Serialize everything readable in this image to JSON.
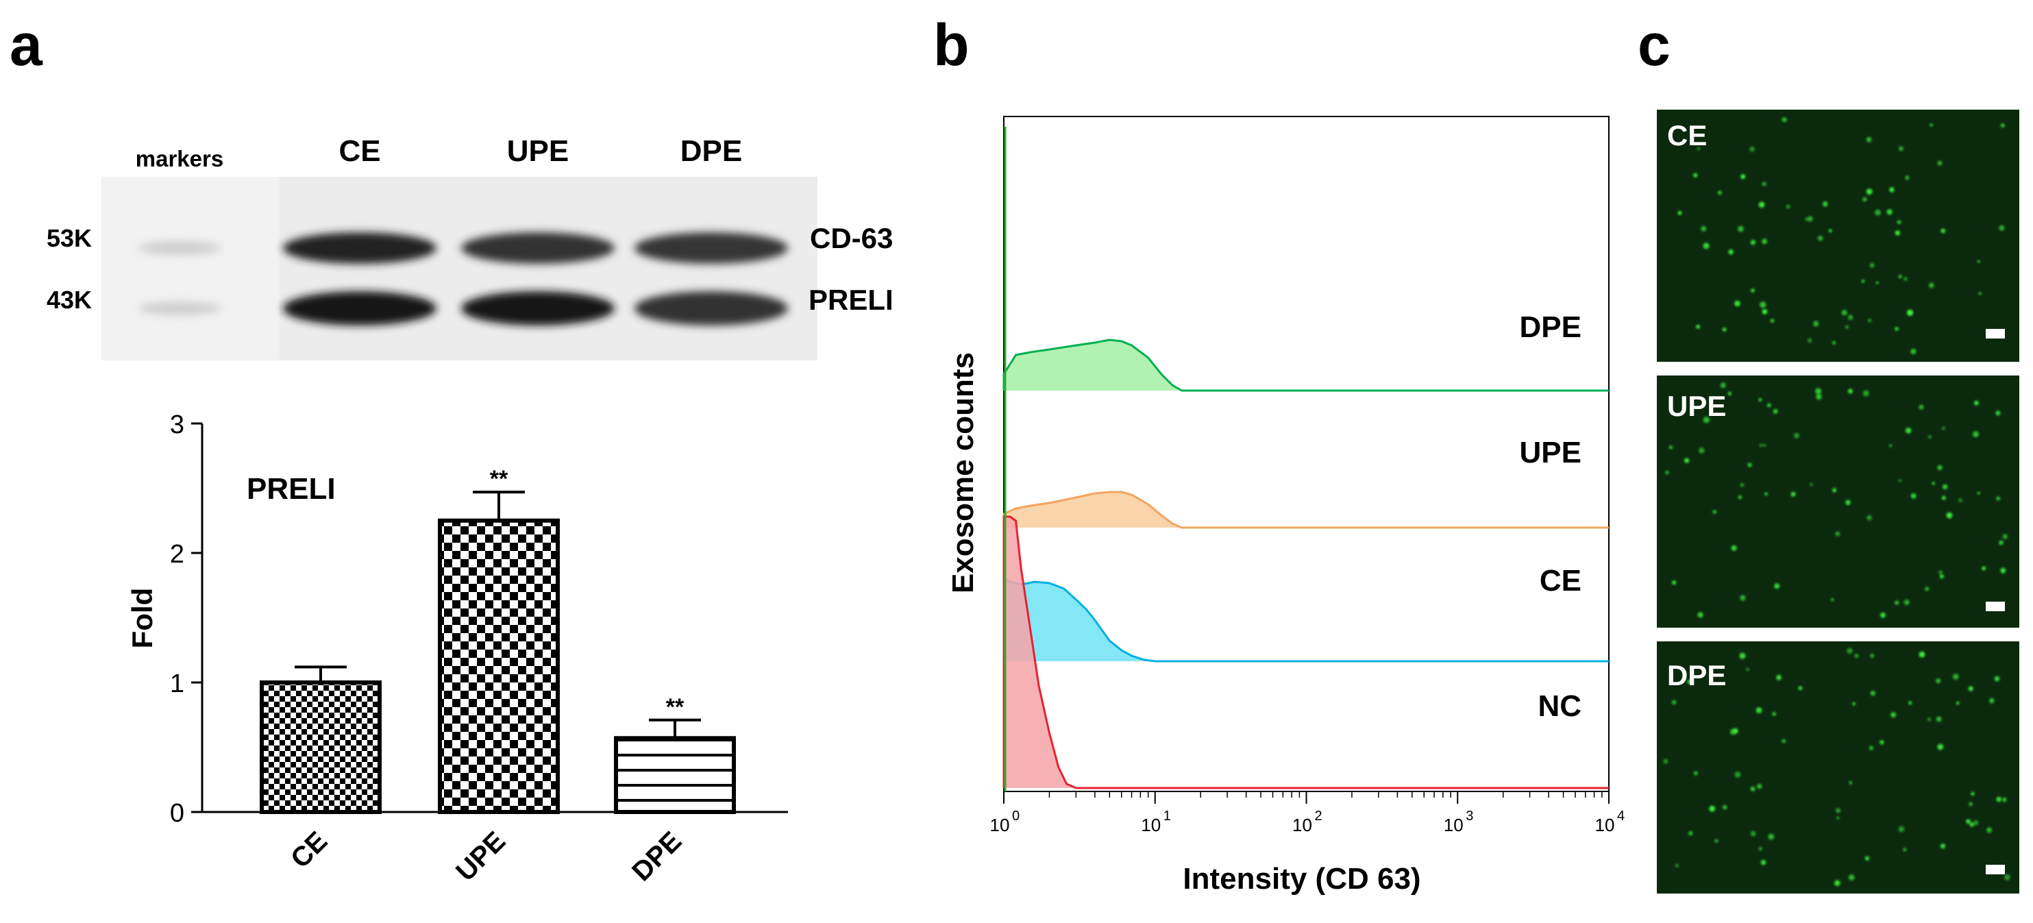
{
  "panel_labels": {
    "a": "a",
    "b": "b",
    "c": "c"
  },
  "blot": {
    "lane_headers": [
      "markers",
      "CE",
      "UPE",
      "DPE"
    ],
    "mw_labels": [
      "53K",
      "43K"
    ],
    "band_labels": [
      "CD-63",
      "PRELI"
    ],
    "band_intensity": {
      "CD-63": [
        0.88,
        0.8,
        0.78
      ],
      "PRELI": [
        0.95,
        0.95,
        0.8
      ]
    }
  },
  "chart_data": [
    {
      "type": "bar",
      "title": "PRELI",
      "categories": [
        "CE",
        "UPE",
        "DPE"
      ],
      "values": [
        1.0,
        2.25,
        0.57
      ],
      "errors": [
        0.12,
        0.22,
        0.14
      ],
      "significance": [
        "",
        "**",
        "**"
      ],
      "patterns": [
        "fine-checker",
        "coarse-checker",
        "horizontal-lines"
      ],
      "ylabel": "Fold",
      "xlabel": "",
      "ylim": [
        0,
        3
      ],
      "yticks": [
        0,
        1,
        2,
        3
      ]
    },
    {
      "type": "area",
      "xlabel": "Intensity (CD 63)",
      "ylabel": "Exosome counts",
      "xscale": "log",
      "xlim": [
        1,
        10000
      ],
      "xticks": [
        {
          "value": 1,
          "label": "10",
          "exp": "0"
        },
        {
          "value": 10,
          "label": "10",
          "exp": "1"
        },
        {
          "value": 100,
          "label": "10",
          "exp": "2"
        },
        {
          "value": 1000,
          "label": "10",
          "exp": "3"
        },
        {
          "value": 10000,
          "label": "10",
          "exp": "4"
        }
      ],
      "series": [
        {
          "name": "DPE",
          "color": "#00b050",
          "fill": "#a3eea3",
          "x": [
            1.0,
            1.2,
            1.5,
            2.0,
            3.0,
            4.0,
            5.0,
            6.0,
            7.0,
            9.0,
            11.0,
            13.0,
            15.0
          ],
          "y": [
            0.12,
            0.26,
            0.28,
            0.3,
            0.33,
            0.35,
            0.37,
            0.36,
            0.33,
            0.24,
            0.12,
            0.04,
            0.0
          ]
        },
        {
          "name": "UPE",
          "color": "#f4a460",
          "fill": "#f9cc9c",
          "x": [
            1.0,
            1.2,
            1.5,
            2.0,
            3.0,
            4.0,
            5.0,
            6.0,
            7.0,
            9.0,
            11.0,
            13.0,
            15.0
          ],
          "y": [
            0.1,
            0.14,
            0.16,
            0.18,
            0.22,
            0.25,
            0.26,
            0.26,
            0.24,
            0.17,
            0.09,
            0.03,
            0.0
          ]
        },
        {
          "name": "CE",
          "color": "#00b0e0",
          "fill": "#6fe3f5",
          "x": [
            1.0,
            1.1,
            1.3,
            1.6,
            2.0,
            2.5,
            3.0,
            3.5,
            4.0,
            4.5,
            5.0,
            6.0,
            7.0,
            8.5,
            10.0
          ],
          "y": [
            0.6,
            0.58,
            0.56,
            0.58,
            0.57,
            0.53,
            0.45,
            0.38,
            0.3,
            0.22,
            0.15,
            0.08,
            0.04,
            0.01,
            0.0
          ]
        },
        {
          "name": "NC",
          "color": "#e8212f",
          "fill": "#f5a3a8",
          "x": [
            1.0,
            1.1,
            1.2,
            1.3,
            1.5,
            1.7,
            2.0,
            2.3,
            2.6,
            3.0
          ],
          "y": [
            1.98,
            1.98,
            1.95,
            1.6,
            1.15,
            0.75,
            0.4,
            0.15,
            0.03,
            0.0
          ]
        }
      ],
      "legend": "inline-right"
    }
  ],
  "microscopy": {
    "panels": [
      "CE",
      "UPE",
      "DPE"
    ],
    "background": "#0b2a0d",
    "spot_color": "#3df03d"
  }
}
